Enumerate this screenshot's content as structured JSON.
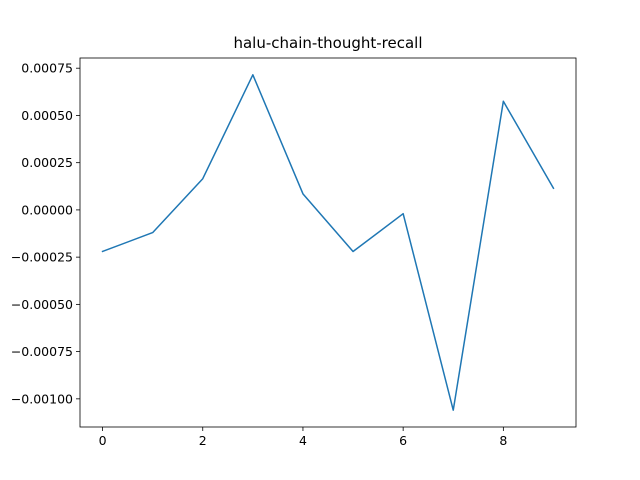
{
  "chart_data": {
    "type": "line",
    "title": "halu-chain-thought-recall",
    "xlabel": "",
    "ylabel": "",
    "x": [
      0,
      1,
      2,
      3,
      4,
      5,
      6,
      7,
      8,
      9
    ],
    "series": [
      {
        "values": [
          -0.00022,
          -0.00012,
          0.000165,
          0.000715,
          8.5e-05,
          -0.00022,
          -2e-05,
          -0.00106,
          0.000575,
          0.000115
        ],
        "color": "#1f77b4"
      }
    ],
    "xlim": [
      -0.45,
      9.45
    ],
    "ylim": [
      -0.001149,
      0.000804
    ],
    "xticks": [
      0,
      2,
      4,
      6,
      8
    ],
    "xtick_labels": [
      "0",
      "2",
      "4",
      "6",
      "8"
    ],
    "yticks": [
      0.00075,
      0.0005,
      0.00025,
      0,
      -0.00025,
      -0.0005,
      -0.00075,
      -0.001
    ],
    "ytick_labels": [
      "0.00075",
      "0.00050",
      "0.00025",
      "0.00000",
      "−0.00025",
      "−0.00050",
      "−0.00075",
      "−0.00100"
    ],
    "grid": false,
    "legend": "none"
  }
}
